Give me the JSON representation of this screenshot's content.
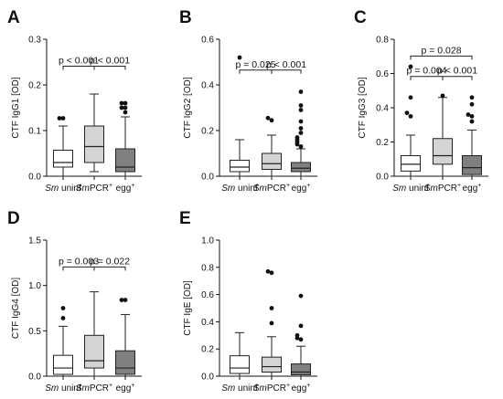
{
  "figure": {
    "categories": [
      {
        "prefix": "Sm",
        "text": " uninf",
        "sup": ""
      },
      {
        "prefix": "Sm",
        "text": "PCR",
        "sup": "+"
      },
      {
        "prefix": "",
        "text": "egg",
        "sup": "+"
      }
    ],
    "box_fill_colors": [
      "#ffffff",
      "#d4d4d4",
      "#808080"
    ]
  },
  "chart_data": [
    {
      "type": "box",
      "panel": "A",
      "ylabel": "CTF  IgG1 [OD]",
      "ylim": [
        0,
        0.3
      ],
      "yticks": [
        0.0,
        0.1,
        0.2,
        0.3
      ],
      "tick_labels": [
        "0.0",
        "0.1",
        "0.2",
        "0.3"
      ],
      "series": [
        {
          "q1": 0.02,
          "median": 0.03,
          "q3": 0.057,
          "whisker_low": 0.0,
          "whisker_high": 0.11,
          "outliers": [
            0.127,
            0.127
          ]
        },
        {
          "q1": 0.03,
          "median": 0.065,
          "q3": 0.11,
          "whisker_low": 0.01,
          "whisker_high": 0.18,
          "outliers": []
        },
        {
          "q1": 0.01,
          "median": 0.02,
          "q3": 0.06,
          "whisker_low": 0.0,
          "whisker_high": 0.13,
          "outliers": [
            0.14,
            0.15,
            0.15,
            0.16,
            0.16
          ]
        }
      ],
      "comparisons": [
        {
          "from": 0,
          "to": 1,
          "y": 0.241,
          "label": "p < 0.001"
        },
        {
          "from": 1,
          "to": 2,
          "y": 0.241,
          "label": "p < 0.001"
        }
      ]
    },
    {
      "type": "box",
      "panel": "B",
      "ylabel": "CTF  IgG2 [OD]",
      "ylim": [
        0,
        0.6
      ],
      "yticks": [
        0.0,
        0.2,
        0.4,
        0.6
      ],
      "tick_labels": [
        "0.0",
        "0.2",
        "0.4",
        "0.6"
      ],
      "series": [
        {
          "q1": 0.02,
          "median": 0.04,
          "q3": 0.07,
          "whisker_low": 0.0,
          "whisker_high": 0.16,
          "outliers": [
            0.52
          ]
        },
        {
          "q1": 0.03,
          "median": 0.055,
          "q3": 0.1,
          "whisker_low": 0.0,
          "whisker_high": 0.18,
          "outliers": [
            0.245,
            0.255
          ]
        },
        {
          "q1": 0.02,
          "median": 0.035,
          "q3": 0.06,
          "whisker_low": 0.0,
          "whisker_high": 0.12,
          "outliers": [
            0.13,
            0.14,
            0.15,
            0.16,
            0.17,
            0.19,
            0.21,
            0.24,
            0.29,
            0.31,
            0.37
          ]
        }
      ],
      "comparisons": [
        {
          "from": 0,
          "to": 1,
          "y": 0.465,
          "label": "p = 0.025"
        },
        {
          "from": 1,
          "to": 2,
          "y": 0.465,
          "label": "p < 0.001"
        }
      ]
    },
    {
      "type": "box",
      "panel": "C",
      "ylabel": "CTF  IgG3 [OD]",
      "ylim": [
        0,
        0.8
      ],
      "yticks": [
        0.0,
        0.2,
        0.4,
        0.6,
        0.8
      ],
      "tick_labels": [
        "0.0",
        "0.2",
        "0.4",
        "0.6",
        "0.8"
      ],
      "series": [
        {
          "q1": 0.03,
          "median": 0.07,
          "q3": 0.12,
          "whisker_low": 0.0,
          "whisker_high": 0.24,
          "outliers": [
            0.35,
            0.37,
            0.46,
            0.64
          ]
        },
        {
          "q1": 0.07,
          "median": 0.12,
          "q3": 0.22,
          "whisker_low": 0.0,
          "whisker_high": 0.46,
          "outliers": [
            0.47
          ]
        },
        {
          "q1": 0.01,
          "median": 0.05,
          "q3": 0.12,
          "whisker_low": 0.0,
          "whisker_high": 0.27,
          "outliers": [
            0.32,
            0.35,
            0.36,
            0.42,
            0.46
          ]
        }
      ],
      "comparisons": [
        {
          "from": 0,
          "to": 1,
          "y": 0.583,
          "label": "p = 0.004"
        },
        {
          "from": 1,
          "to": 2,
          "y": 0.583,
          "label": "p < 0.001"
        },
        {
          "from": 0,
          "to": 2,
          "y": 0.702,
          "label": "p = 0.028"
        }
      ]
    },
    {
      "type": "box",
      "panel": "D",
      "ylabel": "CTF IgG4 [OD]",
      "ylim": [
        0,
        1.5
      ],
      "yticks": [
        0.0,
        0.5,
        1.0,
        1.5
      ],
      "tick_labels": [
        "0.0",
        "0.5",
        "1.0",
        "1.5"
      ],
      "series": [
        {
          "q1": 0.02,
          "median": 0.09,
          "q3": 0.23,
          "whisker_low": 0.0,
          "whisker_high": 0.55,
          "outliers": [
            0.64,
            0.75
          ]
        },
        {
          "q1": 0.09,
          "median": 0.17,
          "q3": 0.45,
          "whisker_low": 0.0,
          "whisker_high": 0.93,
          "outliers": []
        },
        {
          "q1": 0.02,
          "median": 0.09,
          "q3": 0.28,
          "whisker_low": 0.0,
          "whisker_high": 0.68,
          "outliers": [
            0.84,
            0.84
          ]
        }
      ],
      "comparisons": [
        {
          "from": 0,
          "to": 1,
          "y": 1.204,
          "label": "p = 0.003"
        },
        {
          "from": 1,
          "to": 2,
          "y": 1.204,
          "label": "p = 0.022"
        }
      ]
    },
    {
      "type": "box",
      "panel": "E",
      "ylabel": "CTF  IgE [OD]",
      "ylim": [
        0,
        1.0
      ],
      "yticks": [
        0.0,
        0.2,
        0.4,
        0.6,
        0.8,
        1.0
      ],
      "tick_labels": [
        "0.0",
        "0.2",
        "0.4",
        "0.6",
        "0.8",
        "1.0"
      ],
      "series": [
        {
          "q1": 0.02,
          "median": 0.06,
          "q3": 0.15,
          "whisker_low": 0.0,
          "whisker_high": 0.32,
          "outliers": []
        },
        {
          "q1": 0.03,
          "median": 0.07,
          "q3": 0.14,
          "whisker_low": 0.0,
          "whisker_high": 0.29,
          "outliers": [
            0.39,
            0.5,
            0.76,
            0.77
          ]
        },
        {
          "q1": 0.01,
          "median": 0.03,
          "q3": 0.09,
          "whisker_low": 0.0,
          "whisker_high": 0.22,
          "outliers": [
            0.27,
            0.28,
            0.3,
            0.37,
            0.59
          ]
        }
      ],
      "comparisons": []
    }
  ]
}
